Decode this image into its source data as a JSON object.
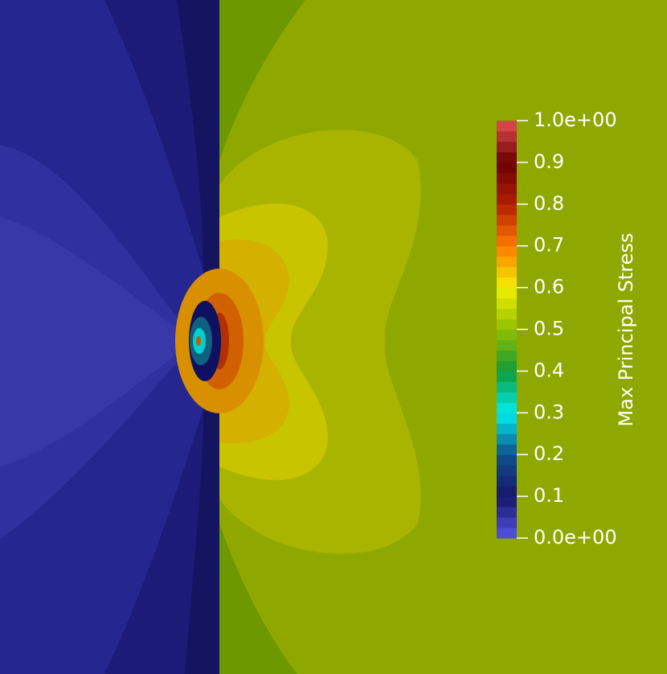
{
  "chart_data": {
    "type": "contour",
    "colorbar_title": "Max Principal Stress",
    "zlim": [
      0,
      1
    ],
    "zticks": [
      {
        "value": 0,
        "label": "0.0e+00"
      },
      0.1,
      0.2,
      0.3,
      0.4,
      0.5,
      0.6,
      0.7,
      0.8,
      0.9,
      {
        "value": 1,
        "label": "1.0e+00"
      }
    ],
    "colorscale": [
      "#5454e4",
      "#161668",
      "#10508a",
      "#00eeee",
      "#109a3a",
      "#90c000",
      "#f2f000",
      "#ff7a00",
      "#b02000",
      "#6a0000",
      "#e05050"
    ],
    "levels": 40
  }
}
